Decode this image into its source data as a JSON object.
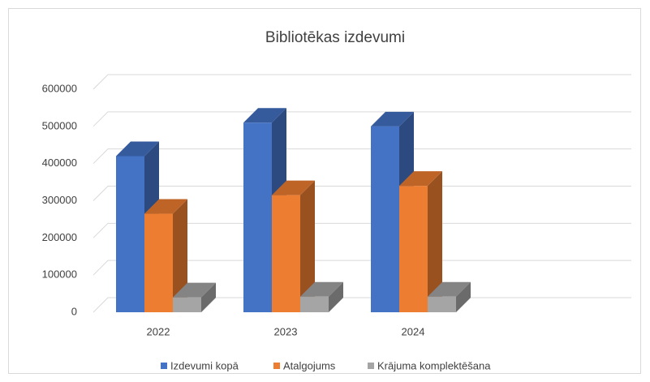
{
  "chart_data": {
    "type": "bar3d",
    "title": "Bibliotēkas izdevumi",
    "categories": [
      "2022",
      "2023",
      "2024"
    ],
    "series": [
      {
        "name": "Izdevumi kopā",
        "color": "#4472c4",
        "values": [
          420000,
          510000,
          500000
        ]
      },
      {
        "name": "Atalgojums",
        "color": "#ed7d31",
        "values": [
          265000,
          315000,
          340000
        ]
      },
      {
        "name": "Krājuma komplektēšana",
        "color": "#a5a5a5",
        "values": [
          40000,
          42000,
          42000
        ]
      }
    ],
    "ylim": [
      0,
      600000
    ],
    "yticks": [
      0,
      100000,
      200000,
      300000,
      400000,
      500000,
      600000
    ],
    "grid": true,
    "legend": "bottom"
  }
}
